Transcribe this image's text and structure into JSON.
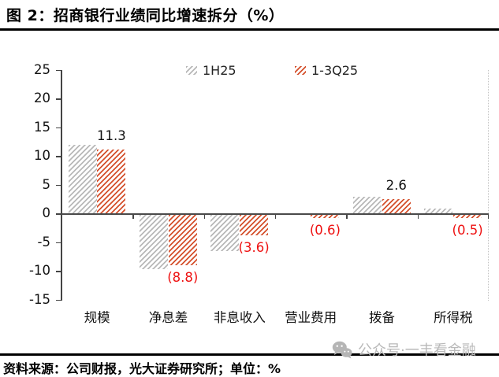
{
  "title": "图 2：招商银行业绩同比增速拆分（%）",
  "chart_data": {
    "type": "bar",
    "title": "招商银行业绩同比增速拆分（%）",
    "categories": [
      "规模",
      "净息差",
      "非息收入",
      "营业费用",
      "拨备",
      "所得税"
    ],
    "series": [
      {
        "name": "1H25",
        "color": "#b8b8b8",
        "values": [
          12.0,
          -9.4,
          -6.3,
          0.0,
          3.0,
          1.0
        ]
      },
      {
        "name": "1-3Q25",
        "color": "#d4502c",
        "values": [
          11.3,
          -8.8,
          -3.6,
          -0.6,
          2.6,
          -0.5
        ]
      }
    ],
    "data_labels": {
      "series": "1-3Q25",
      "values": [
        "11.3",
        "(8.8)",
        "(3.6)",
        "(0.6)",
        "2.6",
        "(0.5)"
      ],
      "negative_style": "red-parentheses"
    },
    "ylim": [
      -15,
      25
    ],
    "yticks": [
      25,
      20,
      15,
      10,
      5,
      0,
      -5,
      -10,
      -15
    ],
    "legend_position": "top-center",
    "grid": false,
    "bar_style": "diagonal-hatch"
  },
  "footer": {
    "source": "资料来源：公司财报，光大证券研究所；单位：%"
  },
  "watermark": {
    "icon": "wechat-logo",
    "text": "公众号·一丰看金融"
  },
  "colors": {
    "series_1h25": "#b8b8b8",
    "series_13q25": "#d4502c",
    "negative_label": "#ee1111",
    "positive_label": "#111111",
    "axis": "#444444",
    "watermark": "#b9b9b9",
    "rule": "#000000"
  }
}
